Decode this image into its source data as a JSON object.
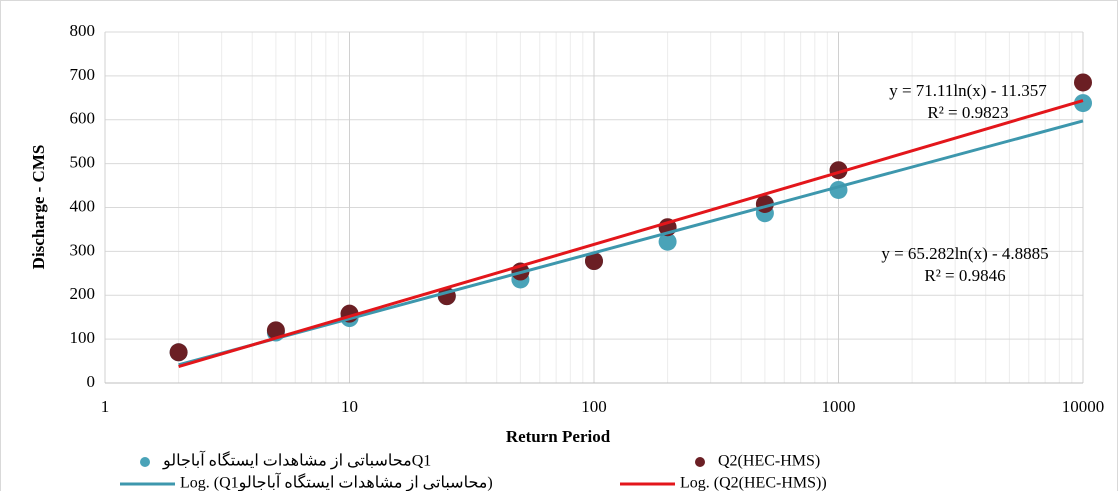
{
  "chart_data": {
    "type": "scatter",
    "x_label": "Return Period",
    "y_label": "Discharge - CMS",
    "x": [
      2,
      5,
      10,
      25,
      50,
      100,
      200,
      500,
      1000,
      10000
    ],
    "xlim": [
      1,
      10000
    ],
    "xticks": [
      1,
      10,
      100,
      1000,
      10000
    ],
    "xscale": "log",
    "ylim": [
      0,
      800
    ],
    "yticks": [
      0,
      100,
      200,
      300,
      400,
      500,
      600,
      700,
      800
    ],
    "grid": true,
    "minor_grid": true,
    "legend": "bottom",
    "series": [
      {
        "name": "محاسباتی از مشاهدات ایستگاه آباجالوQ1",
        "color": "#4aa3b8",
        "line_color": "#3d97ad",
        "values": [
          70,
          115,
          148,
          198,
          236,
          278,
          322,
          387,
          440,
          638
        ],
        "trendline": {
          "name": "Log. (Q1محاسباتی از مشاهدات ایستگاه آباجالو)",
          "equation": "y = 65.282ln(x) - 4.8885",
          "r2": "R² = 0.9846"
        }
      },
      {
        "name": "Q2(HEC-HMS)",
        "color": "#6b1f24",
        "line_color": "#e3161b",
        "values": [
          70,
          120,
          158,
          198,
          254,
          278,
          355,
          408,
          485,
          685
        ],
        "trendline": {
          "name": "Log. (Q2(HEC-HMS))",
          "equation": "y = 71.11ln(x) - 11.357",
          "r2": "R² = 0.9823"
        }
      }
    ]
  }
}
